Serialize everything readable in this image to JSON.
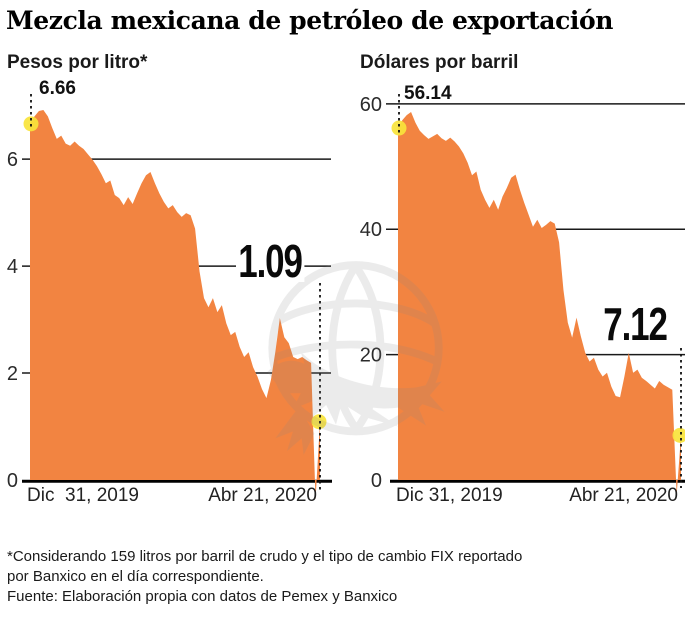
{
  "title": "Mezcla mexicana de petróleo de exportación",
  "watermark_icon": "eagle-over-globe-watermark",
  "colors": {
    "area": "#F28441",
    "marker_dot": "#F8E43B",
    "gridline": "#1a1a1a",
    "axis": "#000000",
    "dashed_line": "#111111",
    "text": "#1a1a1a"
  },
  "footnotes": [
    "*Considerando 159 litros por barril de crudo y el tipo de cambio FIX reportado",
    "por Banxico en el día correspondiente.",
    "Fuente: Elaboración propia con datos de Pemex y Banxico"
  ],
  "chart_data": [
    {
      "type": "area",
      "title": "Pesos por litro*",
      "x_start_label": "Dic  31, 2019",
      "x_end_label": "Abr 21, 2020",
      "y_ticks": [
        0,
        2,
        4,
        6
      ],
      "ylim": [
        0,
        7.48
      ],
      "grid": "horizontal-under-area",
      "legend_position": "none",
      "first_point": {
        "date": "Dic 31, 2019",
        "value": 6.66,
        "label": "6.66"
      },
      "last_point": {
        "date": "Abr 21, 2020",
        "value": 1.09,
        "label": "1.09"
      },
      "values": [
        6.66,
        6.8,
        6.9,
        6.92,
        6.8,
        6.58,
        6.38,
        6.44,
        6.29,
        6.25,
        6.33,
        6.25,
        6.19,
        6.09,
        5.99,
        5.87,
        5.72,
        5.55,
        5.6,
        5.33,
        5.27,
        5.14,
        5.29,
        5.16,
        5.36,
        5.55,
        5.7,
        5.76,
        5.55,
        5.36,
        5.2,
        5.08,
        5.14,
        5.01,
        4.92,
        4.99,
        4.95,
        4.7,
        3.9,
        3.4,
        3.23,
        3.4,
        3.14,
        3.27,
        2.93,
        2.71,
        2.77,
        2.49,
        2.3,
        2.39,
        2.11,
        1.93,
        1.7,
        1.53,
        1.87,
        2.4,
        3.03,
        2.67,
        2.56,
        2.3,
        2.26,
        2.3,
        2.24,
        2.19,
        -0.36,
        1.09
      ]
    },
    {
      "type": "area",
      "title": "Dólares por barril",
      "x_start_label": "Dic 31, 2019",
      "x_end_label": "Abr 21, 2020",
      "y_ticks": [
        0,
        20,
        40,
        60
      ],
      "ylim": [
        0,
        63.8
      ],
      "grid": "horizontal-under-area",
      "legend_position": "none",
      "first_point": {
        "date": "Dic 31, 2019",
        "value": 56.14,
        "label": "56.14"
      },
      "last_point": {
        "date": "Abr 21, 2020",
        "value": 7.12,
        "label": "7.12"
      },
      "values": [
        56.14,
        57.4,
        58.2,
        58.7,
        57.0,
        55.7,
        55.0,
        54.4,
        54.8,
        55.2,
        54.5,
        54.1,
        54.6,
        54.0,
        53.2,
        52.1,
        50.6,
        48.6,
        49.2,
        46.3,
        44.7,
        43.4,
        44.7,
        43.1,
        45.2,
        46.6,
        48.2,
        48.7,
        46.3,
        44.2,
        42.3,
        40.4,
        41.5,
        40.2,
        40.7,
        41.3,
        40.9,
        37.9,
        30.3,
        25.1,
        22.7,
        25.9,
        22.9,
        20.3,
        18.9,
        19.5,
        17.6,
        16.5,
        17.1,
        14.9,
        13.4,
        13.2,
        16.5,
        20.3,
        17.1,
        17.6,
        16.3,
        15.8,
        15.2,
        14.6,
        15.8,
        15.2,
        14.8,
        14.4,
        -2.37,
        7.12
      ]
    }
  ]
}
